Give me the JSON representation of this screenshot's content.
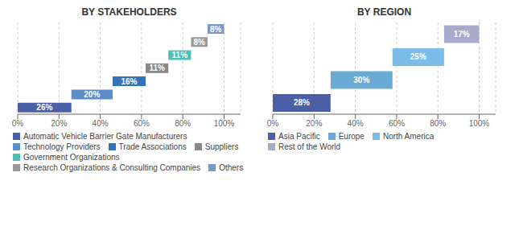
{
  "chart_data": [
    {
      "type": "waterfall",
      "orientation": "horizontal",
      "title": "BY STAKEHOLDERS",
      "categories": [
        "Automatic Vehicle Barrier Gate Manufacturers",
        "Technology Providers",
        "Trade Associations",
        "Suppliers",
        "Government Organizations",
        "Research Organizations & Consulting Companies",
        "Others"
      ],
      "values": [
        26,
        20,
        16,
        11,
        11,
        8,
        8
      ],
      "value_labels": [
        "26%",
        "20%",
        "16%",
        "11%",
        "11%",
        "8%",
        "8%"
      ],
      "colors": [
        "#4a5fa5",
        "#5b8ec8",
        "#3573b8",
        "#888888",
        "#4dbfb8",
        "#999999",
        "#7799cc"
      ],
      "xlim": [
        0,
        108
      ],
      "xticks": [
        {
          "value": 0,
          "label": "0%"
        },
        {
          "value": 20,
          "label": "20%"
        },
        {
          "value": 40,
          "label": "40%"
        },
        {
          "value": 60,
          "label": "60%"
        },
        {
          "value": 80,
          "label": "80%"
        },
        {
          "value": 100,
          "label": "100%"
        }
      ],
      "grid": true,
      "legend": "bottom",
      "data_labels": true,
      "tick_labels": "x"
    },
    {
      "type": "waterfall",
      "orientation": "horizontal",
      "title": "BY REGION",
      "categories": [
        "Asia Pacific",
        "Europe",
        "North America",
        "Rest of the World"
      ],
      "values": [
        28,
        30,
        25,
        17
      ],
      "value_labels": [
        "28%",
        "30%",
        "25%",
        "17%"
      ],
      "colors": [
        "#4a5fa5",
        "#6aaad4",
        "#7bbde8",
        "#aaaacc"
      ],
      "xlim": [
        0,
        108
      ],
      "xticks": [
        {
          "value": 0,
          "label": "0%"
        },
        {
          "value": 20,
          "label": "20%"
        },
        {
          "value": 40,
          "label": "40%"
        },
        {
          "value": 60,
          "label": "60%"
        },
        {
          "value": 80,
          "label": "80%"
        },
        {
          "value": 100,
          "label": "100%"
        }
      ],
      "grid": true,
      "legend": "bottom",
      "data_labels": true,
      "tick_labels": "x"
    }
  ]
}
